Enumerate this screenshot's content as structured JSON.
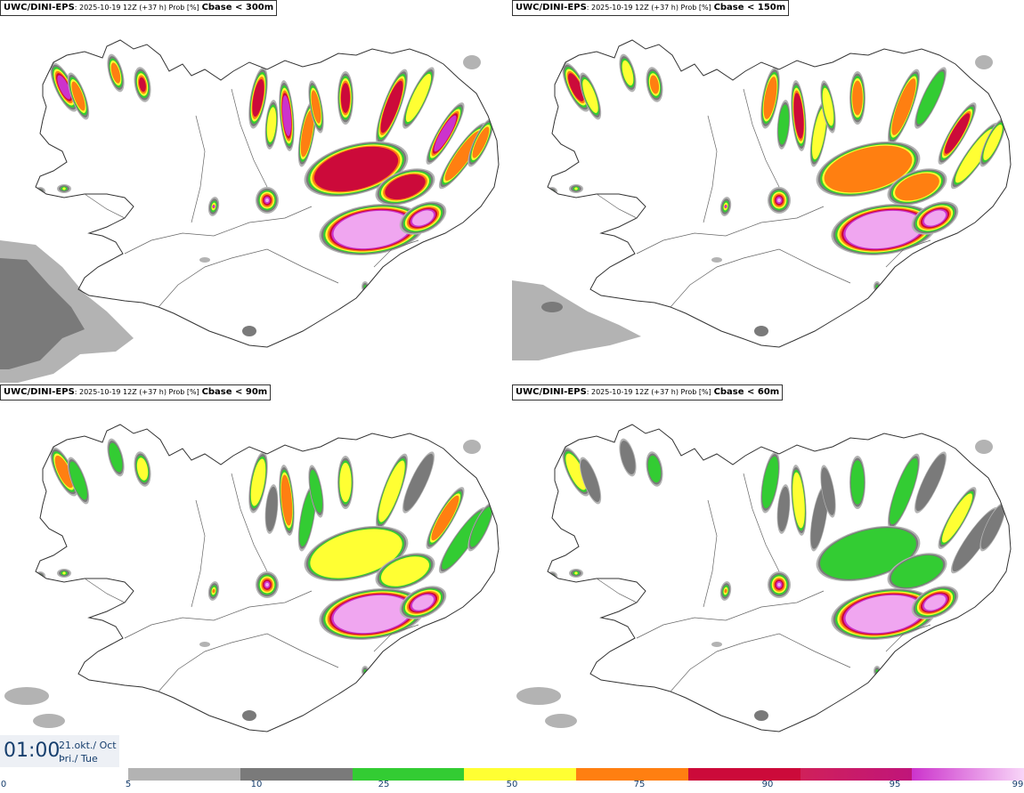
{
  "panels": [
    {
      "source": "UWC/DINI-EPS",
      "meta": ": 2025-10-19 12Z (+37 h) Prob [%]",
      "variable": "Cbase < 300m"
    },
    {
      "source": "UWC/DINI-EPS",
      "meta": ": 2025-10-19 12Z (+37 h) Prob [%]",
      "variable": "Cbase < 150m"
    },
    {
      "source": "UWC/DINI-EPS",
      "meta": ": 2025-10-19 12Z (+37 h) Prob [%]",
      "variable": "Cbase < 90m"
    },
    {
      "source": "UWC/DINI-EPS",
      "meta": ": 2025-10-19 12Z (+37 h) Prob [%]",
      "variable": "Cbase < 60m"
    }
  ],
  "time": {
    "clock": "01:00",
    "date_line": "21.okt./ Oct",
    "day_line": "Þri./ Tue"
  },
  "colorbar": {
    "labels": [
      "0",
      "5",
      "10",
      "25",
      "50",
      "75",
      "90",
      "95",
      "99"
    ],
    "colors": [
      "#b3b3b3",
      "#7a7a7a",
      "#33cc33",
      "#ffff33",
      "#ff7f11",
      "#cc0a3a",
      "#cc33cc",
      "#f5b8f5"
    ]
  }
}
